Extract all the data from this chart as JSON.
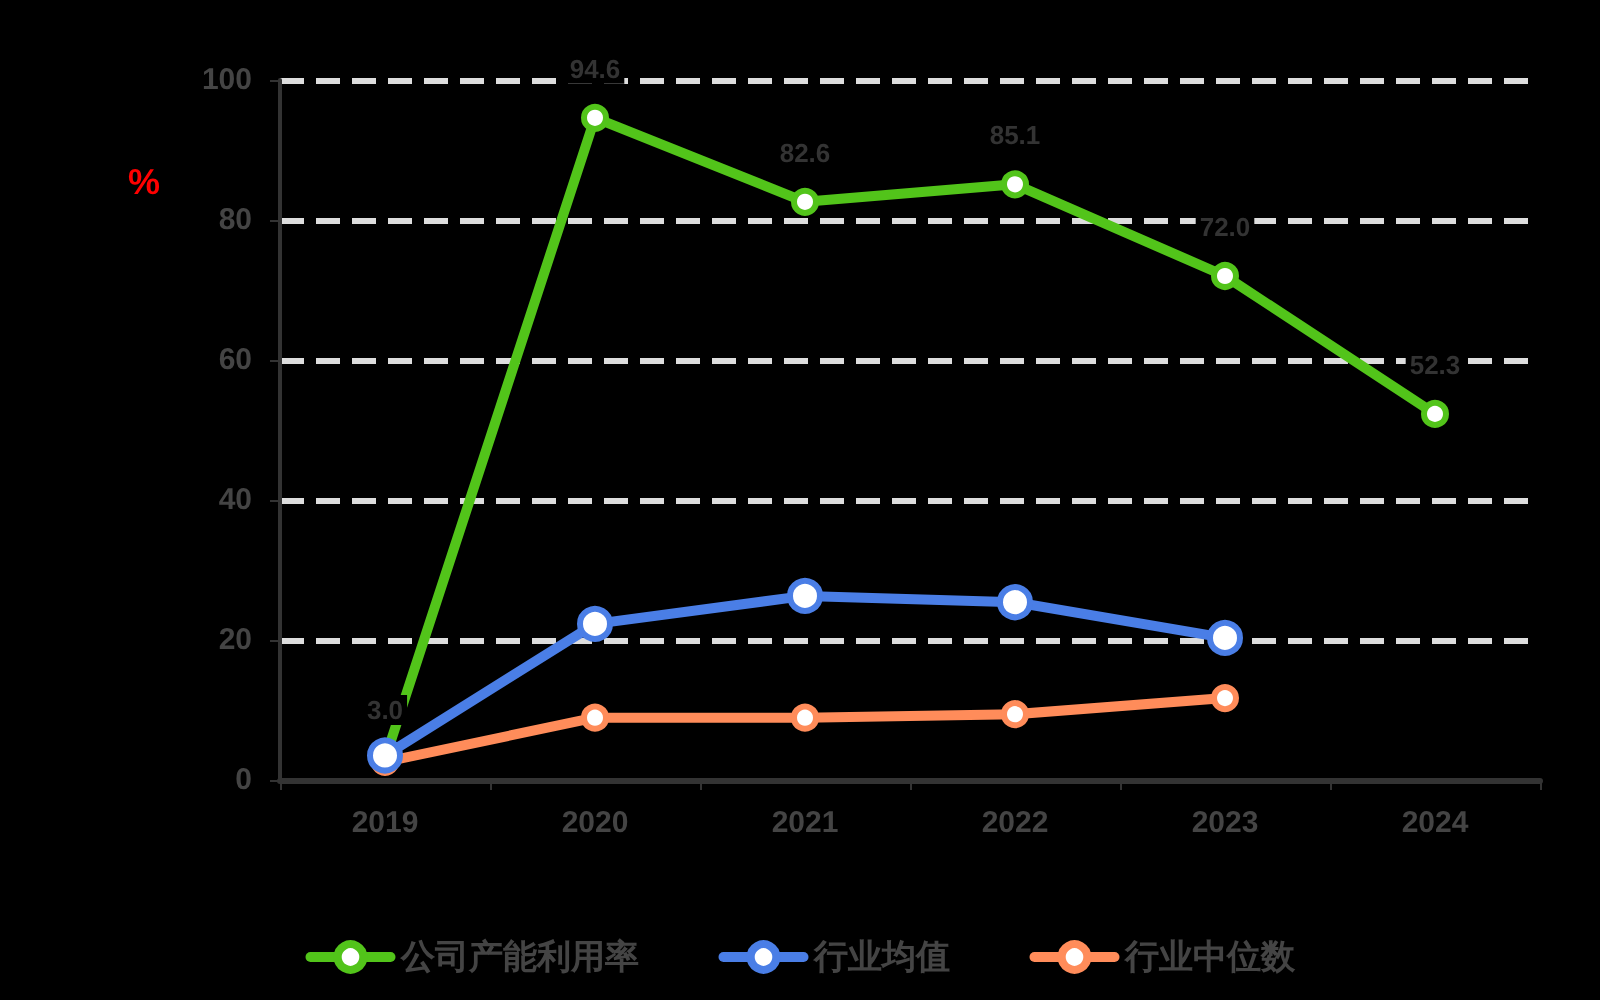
{
  "chart_data": {
    "type": "line",
    "ylabel": "%",
    "categories": [
      "2019",
      "2020",
      "2021",
      "2022",
      "2023",
      "2024"
    ],
    "series": [
      {
        "name": "公司产能利用率",
        "color": "#52c41a",
        "values": [
          3.0,
          94.6,
          82.6,
          85.1,
          72.0,
          52.3
        ],
        "value_labels": [
          "3.0",
          "94.6",
          "82.6",
          "85.1",
          "72.0",
          "52.3"
        ]
      },
      {
        "name": "行业均值",
        "color": "#4a7ee6",
        "values": [
          3.5,
          22.3,
          26.3,
          25.4,
          20.3,
          null
        ]
      },
      {
        "name": "行业中位数",
        "color": "#ff8c5a",
        "values": [
          2.6,
          8.9,
          8.9,
          9.4,
          11.7,
          null
        ]
      }
    ],
    "ylim": [
      0,
      100
    ],
    "yticks": [
      0,
      20,
      40,
      60,
      80,
      100
    ],
    "grid": "y",
    "legend": "bottom",
    "marker": "circle",
    "line_style": "solid"
  }
}
